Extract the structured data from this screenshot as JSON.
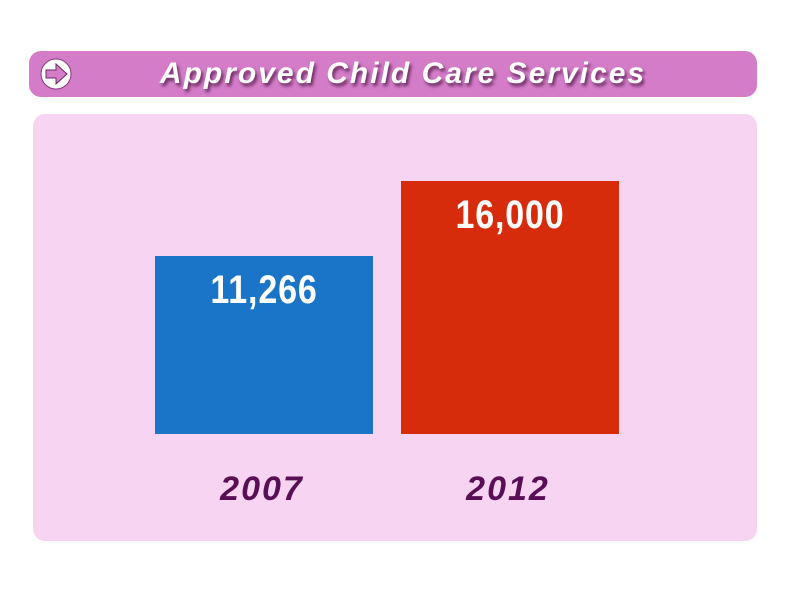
{
  "header": {
    "title": "Approved Child Care Services",
    "icon": "arrow-right-circle-icon"
  },
  "colors": {
    "header_bg": "#d47cc8",
    "panel_bg": "#f7d5f2",
    "label": "#5a0f55"
  },
  "chart_data": {
    "type": "bar",
    "title": "Approved Child Care Services",
    "categories": [
      "2007",
      "2012"
    ],
    "values": [
      11266,
      16000
    ],
    "value_labels": [
      "11,266",
      "16,000"
    ],
    "colors": [
      "#1a75c9",
      "#d62c0b"
    ],
    "xlabel": "",
    "ylabel": "",
    "ylim": [
      0,
      16000
    ],
    "grid": false
  }
}
